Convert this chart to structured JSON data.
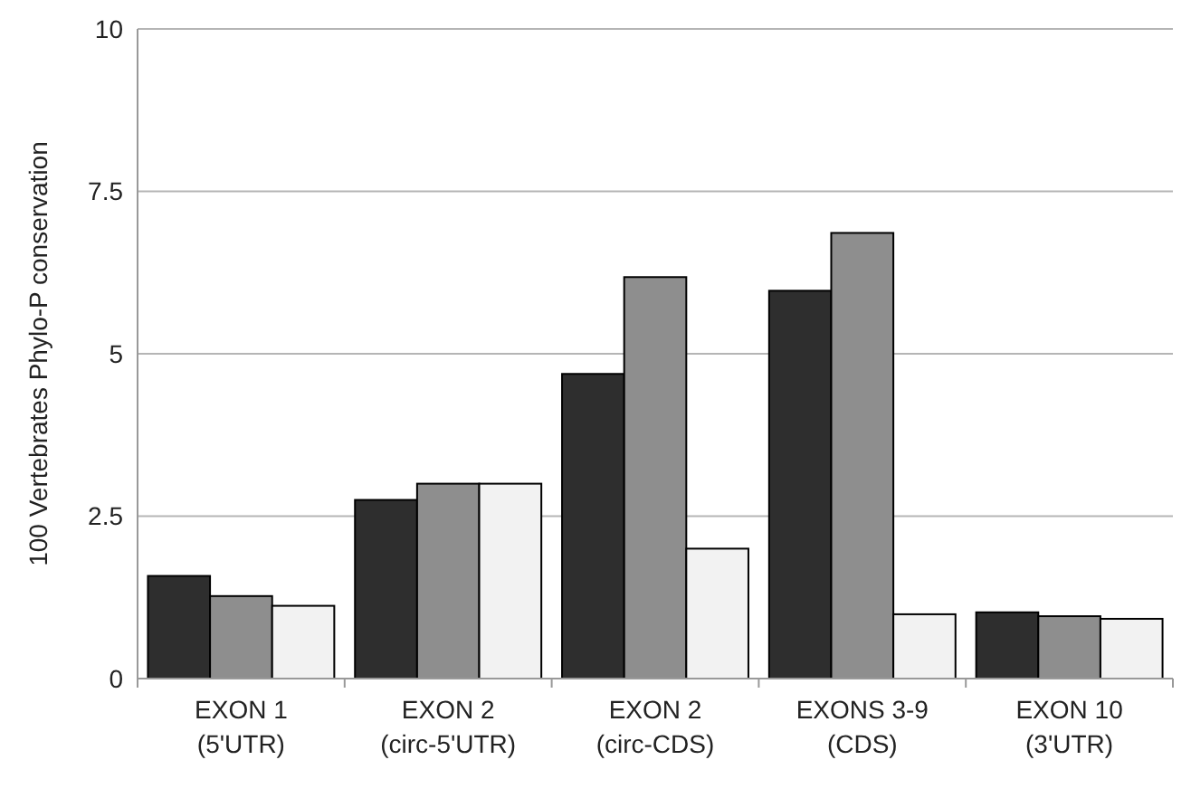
{
  "chart_data": {
    "type": "bar",
    "ylabel": "100 Vertebrates Phylo-P conservation",
    "categories": [
      "EXON 1\n(5'UTR)",
      "EXON 2\n(circ-5'UTR)",
      "EXON 2\n(circ-CDS)",
      "EXONS 3-9\n(CDS)",
      "EXON 10\n(3'UTR)"
    ],
    "series": [
      {
        "color": "#2e2e2e",
        "values": [
          1.58,
          2.75,
          4.69,
          5.97,
          1.02
        ]
      },
      {
        "color": "#8e8e8e",
        "values": [
          1.27,
          3.0,
          6.18,
          6.86,
          0.96
        ]
      },
      {
        "color": "#f2f2f2",
        "values": [
          1.12,
          3.0,
          2.0,
          0.99,
          0.92
        ]
      }
    ],
    "ylim": [
      0,
      10
    ],
    "yticks": [
      0,
      2.5,
      5,
      7.5,
      10
    ],
    "grid": "y"
  }
}
